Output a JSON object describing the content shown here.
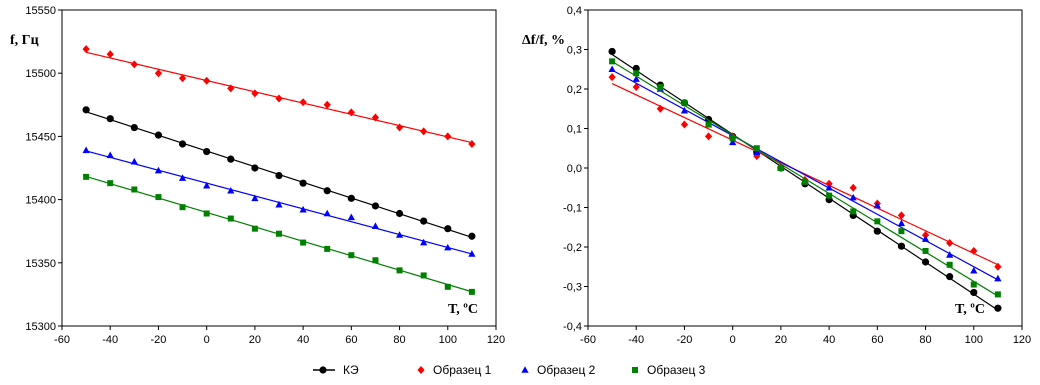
{
  "legend": {
    "items": [
      {
        "label": "КЭ",
        "color": "#000000",
        "marker": "circle"
      },
      {
        "label": "Образец 1",
        "color": "#ff0000",
        "marker": "diamond"
      },
      {
        "label": "Образец 2",
        "color": "#0000ff",
        "marker": "triangle"
      },
      {
        "label": "Образец 3",
        "color": "#008000",
        "marker": "square"
      }
    ]
  },
  "chart_data": [
    {
      "type": "scatter",
      "trendlines": "linear",
      "ylabel": "f, Гц",
      "xlabel": "T, ºC",
      "xlim": [
        -60,
        120
      ],
      "ylim": [
        15300,
        15550
      ],
      "xticks": [
        "-60",
        "-40",
        "-20",
        "0",
        "20",
        "40",
        "60",
        "80",
        "100",
        "120"
      ],
      "yticks": [
        "15300",
        "15350",
        "15400",
        "15450",
        "15500",
        "15550"
      ],
      "grid": false,
      "x": [
        -50,
        -40,
        -30,
        -20,
        -10,
        0,
        10,
        20,
        30,
        40,
        50,
        60,
        70,
        80,
        90,
        100,
        110
      ],
      "series": [
        {
          "name": "КЭ",
          "color": "#000000",
          "marker": "circle",
          "values": [
            15471,
            15464,
            15457,
            15451,
            15444,
            15438,
            15432,
            15425,
            15419,
            15413,
            15407,
            15401,
            15395,
            15389,
            15383,
            15377,
            15371
          ]
        },
        {
          "name": "Образец 1",
          "color": "#ff0000",
          "marker": "diamond",
          "values": [
            15519,
            15515,
            15507,
            15500,
            15496,
            15494,
            15488,
            15484,
            15480,
            15477,
            15475,
            15469,
            15465,
            15457,
            15454,
            15450,
            15444
          ]
        },
        {
          "name": "Образец 2",
          "color": "#0000ff",
          "marker": "triangle",
          "values": [
            15439,
            15435,
            15430,
            15423,
            15417,
            15411,
            15407,
            15401,
            15396,
            15392,
            15389,
            15386,
            15379,
            15372,
            15366,
            15362,
            15357
          ]
        },
        {
          "name": "Образец 3",
          "color": "#008000",
          "marker": "square",
          "values": [
            15418,
            15413,
            15408,
            15402,
            15394,
            15389,
            15385,
            15377,
            15373,
            15366,
            15361,
            15356,
            15352,
            15344,
            15340,
            15331,
            15327
          ]
        }
      ]
    },
    {
      "type": "scatter",
      "trendlines": "linear",
      "ylabel": "Δf/f, %",
      "xlabel": "T, ºC",
      "xlim": [
        -60,
        120
      ],
      "ylim": [
        -0.4,
        0.4
      ],
      "xticks": [
        "-60",
        "-40",
        "-20",
        "0",
        "20",
        "40",
        "60",
        "80",
        "100",
        "120"
      ],
      "yticks": [
        "-0,4",
        "-0,3",
        "-0,2",
        "-0,1",
        "0,0",
        "0,1",
        "0,2",
        "0,3",
        "0,4"
      ],
      "grid": false,
      "x": [
        -50,
        -40,
        -30,
        -20,
        -10,
        0,
        10,
        20,
        30,
        40,
        50,
        60,
        70,
        80,
        90,
        100,
        110
      ],
      "series": [
        {
          "name": "КЭ",
          "color": "#000000",
          "marker": "circle",
          "values": [
            0.295,
            0.252,
            0.21,
            0.165,
            0.123,
            0.08,
            0.04,
            0.0,
            -0.04,
            -0.08,
            -0.12,
            -0.16,
            -0.198,
            -0.238,
            -0.275,
            -0.315,
            -0.355
          ]
        },
        {
          "name": "Образец 1",
          "color": "#ff0000",
          "marker": "diamond",
          "values": [
            0.23,
            0.205,
            0.15,
            0.11,
            0.08,
            0.08,
            0.03,
            0.0,
            -0.03,
            -0.04,
            -0.05,
            -0.09,
            -0.12,
            -0.17,
            -0.19,
            -0.21,
            -0.25
          ]
        },
        {
          "name": "Образец 2",
          "color": "#0000ff",
          "marker": "triangle",
          "values": [
            0.25,
            0.225,
            0.2,
            0.145,
            0.11,
            0.065,
            0.04,
            0.0,
            -0.035,
            -0.05,
            -0.075,
            -0.095,
            -0.14,
            -0.18,
            -0.22,
            -0.26,
            -0.28
          ]
        },
        {
          "name": "Образец 3",
          "color": "#008000",
          "marker": "square",
          "values": [
            0.27,
            0.24,
            0.205,
            0.165,
            0.11,
            0.075,
            0.05,
            0.0,
            -0.035,
            -0.07,
            -0.11,
            -0.135,
            -0.16,
            -0.21,
            -0.245,
            -0.295,
            -0.32
          ]
        }
      ]
    }
  ]
}
